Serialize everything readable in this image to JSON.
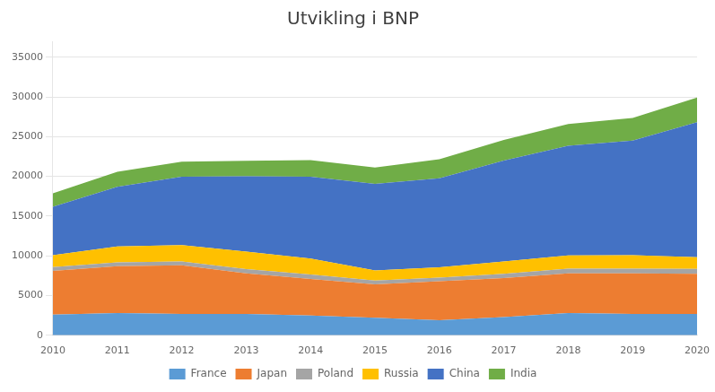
{
  "chart_data": {
    "type": "area",
    "title": "Utvikling i BNP",
    "x": [
      2010,
      2011,
      2012,
      2013,
      2014,
      2015,
      2016,
      2017,
      2018,
      2019,
      2020
    ],
    "series": [
      {
        "name": "France",
        "color": "#5B9BD5",
        "values": [
          2600,
          2800,
          2700,
          2700,
          2500,
          2200,
          1900,
          2300,
          2800,
          2700,
          2700
        ]
      },
      {
        "name": "Japan",
        "color": "#ED7D31",
        "values": [
          5500,
          5900,
          6100,
          5100,
          4600,
          4200,
          4900,
          4900,
          5000,
          5100,
          5050
        ]
      },
      {
        "name": "Poland",
        "color": "#A5A5A5",
        "values": [
          470,
          490,
          500,
          520,
          545,
          480,
          470,
          525,
          590,
          590,
          596
        ]
      },
      {
        "name": "Russia",
        "color": "#FFC000",
        "values": [
          1500,
          2000,
          2050,
          2200,
          2000,
          1280,
          1280,
          1570,
          1660,
          1700,
          1480
        ]
      },
      {
        "name": "China",
        "color": "#4472C4",
        "values": [
          6100,
          7500,
          8600,
          9500,
          10300,
          10900,
          11200,
          12700,
          13800,
          14400,
          17000
        ]
      },
      {
        "name": "India",
        "color": "#70AD47",
        "values": [
          1700,
          1900,
          1900,
          1950,
          2100,
          2050,
          2400,
          2600,
          2750,
          2850,
          3100
        ]
      }
    ],
    "xlim": [
      2010,
      2020
    ],
    "xticks": [
      2010,
      2011,
      2012,
      2013,
      2014,
      2015,
      2016,
      2017,
      2018,
      2019,
      2020
    ],
    "ylim": [
      0,
      37000
    ],
    "yticks": [
      0,
      5000,
      10000,
      15000,
      20000,
      25000,
      30000,
      35000
    ],
    "grid": true,
    "stacked": true,
    "legend": "bottom"
  }
}
